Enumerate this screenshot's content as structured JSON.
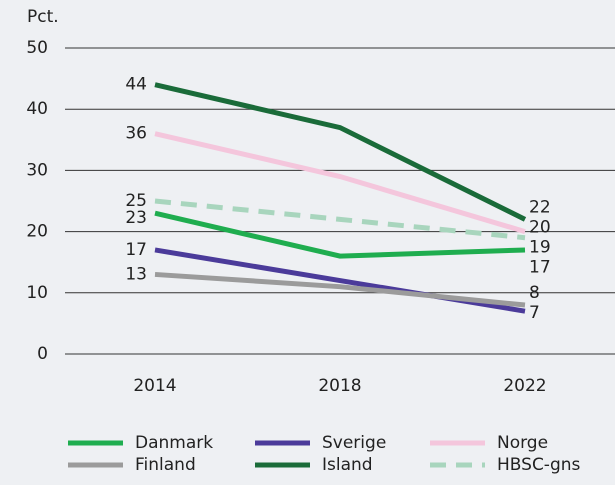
{
  "chart_data": {
    "type": "line",
    "y_label": "Pct.",
    "categories": [
      "2014",
      "2018",
      "2022"
    ],
    "ylim": [
      0,
      50
    ],
    "yticks": [
      0,
      10,
      20,
      30,
      40,
      50
    ],
    "grid": true,
    "series": [
      {
        "name": "Danmark",
        "color": "#1fad4f",
        "values": [
          23,
          16,
          17
        ]
      },
      {
        "name": "Sverige",
        "color": "#4b3b9a",
        "values": [
          17,
          12,
          7
        ]
      },
      {
        "name": "Norge",
        "color": "#f4c6dc",
        "values": [
          36,
          29,
          20
        ]
      },
      {
        "name": "Finland",
        "color": "#9b9b9b",
        "values": [
          13,
          11,
          8
        ]
      },
      {
        "name": "Island",
        "color": "#1a6b39",
        "values": [
          44,
          37,
          22
        ]
      },
      {
        "name": "HBSC-gns",
        "color": "#a8d5bd",
        "dashed": true,
        "values": [
          25,
          22,
          19
        ]
      }
    ]
  }
}
